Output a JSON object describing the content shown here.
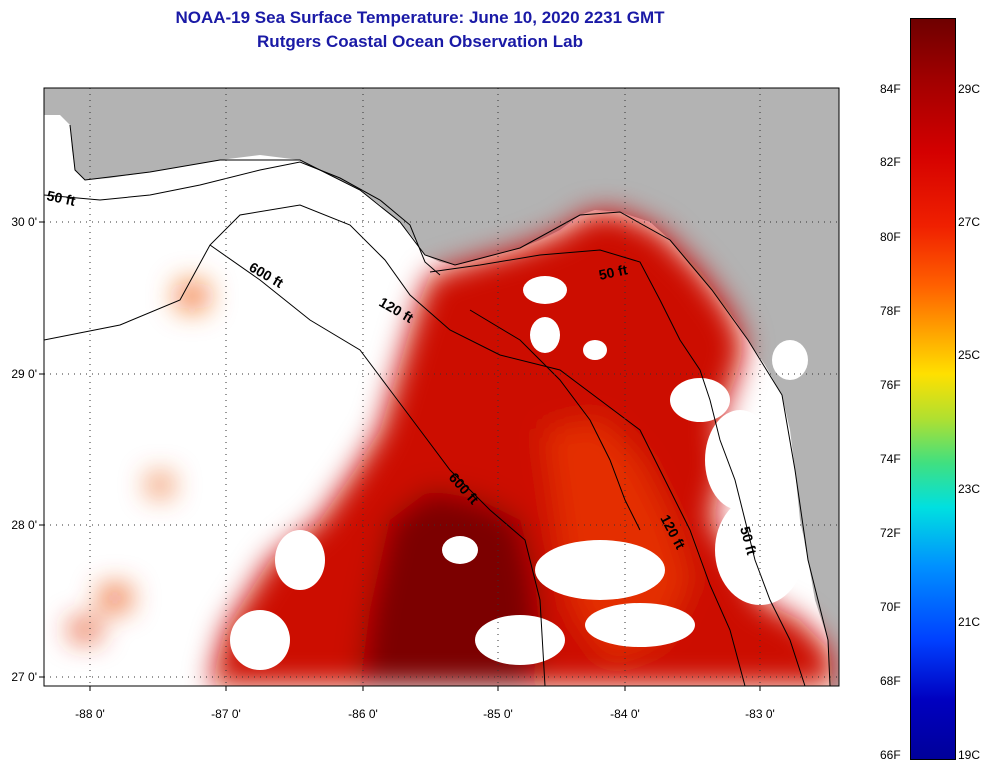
{
  "title": {
    "line1": "NOAA-19 Sea Surface Temperature:  June 10, 2020 2231 GMT",
    "line2": "Rutgers Coastal Ocean Observation Lab"
  },
  "map": {
    "x_ticks": [
      "-88 0'",
      "-87 0'",
      "-86 0'",
      "-85 0'",
      "-84 0'",
      "-83 0'"
    ],
    "y_ticks": [
      "30 0'",
      "29 0'",
      "28 0'",
      "27 0'"
    ],
    "contours": [
      {
        "label": "50 ft"
      },
      {
        "label": "600 ft"
      },
      {
        "label": "120 ft"
      },
      {
        "label": "50 ft"
      },
      {
        "label": "600 ft"
      },
      {
        "label": "120 ft"
      },
      {
        "label": "50 ft"
      }
    ],
    "colors": {
      "land": "#b3b3b3",
      "cloud": "#ffffff",
      "warm_dark": "#7a0000",
      "warm": "#c20000",
      "mid": "#e02a00"
    }
  },
  "colorbar": {
    "fahrenheit": [
      "84F",
      "82F",
      "80F",
      "78F",
      "76F",
      "74F",
      "72F",
      "70F",
      "68F",
      "66F"
    ],
    "celsius": [
      "29C",
      "27C",
      "25C",
      "23C",
      "21C",
      "19C"
    ]
  }
}
